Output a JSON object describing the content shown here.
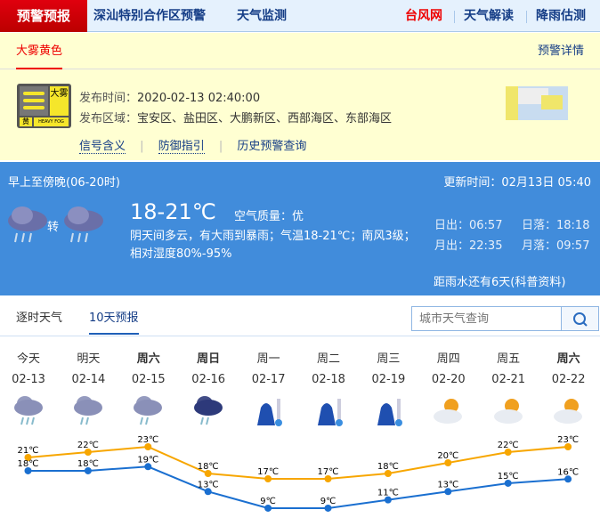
{
  "topnav": {
    "active": "预警预报",
    "items": [
      "深汕特别合作区预警",
      "天气监测"
    ],
    "right": [
      "台风网",
      "天气解读",
      "降雨估测"
    ]
  },
  "warning": {
    "tab": "大雾黄色",
    "detail_link": "预警详情",
    "icon": {
      "big": "大雾",
      "color_label": "黄",
      "english": "HEAVY FOG"
    },
    "time_label": "发布时间：",
    "time": "2020-02-13 02:40:00",
    "area_label": "发布区域：",
    "area": "宝安区、盐田区、大鹏新区、西部海区、东部海区",
    "links": [
      "信号含义",
      "防御指引",
      "历史预警查询"
    ]
  },
  "today": {
    "period": "早上至傍晚(06-20时)",
    "update": "更新时间：02月13日 05:40",
    "transition": "转",
    "temp": "18-21℃",
    "aqi_label": "空气质量：",
    "aqi": "优",
    "desc": "阴天间多云，有大雨到暴雨；气温18-21℃；南风3级；相对湿度80%-95%",
    "sunrise": "日出：06:57",
    "sunset": "日落：18:18",
    "moonrise": "月出：22:35",
    "moonset": "月落：09:57",
    "rain_note": "距雨水还有6天(科普资料)"
  },
  "forecast_tabs": [
    "逐时天气",
    "10天预报"
  ],
  "search": {
    "placeholder": "城市天气查询"
  },
  "colors": {
    "high": "#f7a600",
    "low": "#1a6fd0",
    "panel": "#418cdb"
  },
  "chart_data": {
    "type": "line",
    "categories": [
      "今天",
      "明天",
      "周六",
      "周日",
      "周一",
      "周二",
      "周三",
      "周四",
      "周五",
      "周六"
    ],
    "dates": [
      "02-13",
      "02-14",
      "02-15",
      "02-16",
      "02-17",
      "02-18",
      "02-19",
      "02-20",
      "02-21",
      "02-22"
    ],
    "bold": [
      false,
      false,
      true,
      true,
      false,
      false,
      false,
      false,
      false,
      true
    ],
    "icons": [
      "heavy-rain",
      "rain",
      "rain",
      "dark-shower",
      "cold",
      "cold",
      "cold",
      "cloudy-sun",
      "sun-cloud",
      "sun-cloud"
    ],
    "series": [
      {
        "values": [
          21,
          22,
          23,
          18,
          17,
          17,
          18,
          20,
          22,
          23
        ]
      },
      {
        "values": [
          18,
          18,
          19,
          13,
          9,
          9,
          11,
          13,
          15,
          16
        ]
      }
    ],
    "unit": "℃"
  }
}
